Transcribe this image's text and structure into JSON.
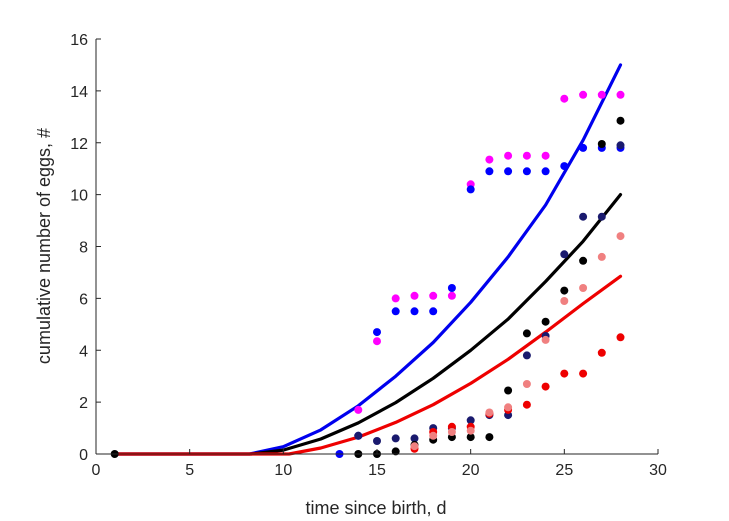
{
  "chart_data": {
    "type": "scatter",
    "title": "",
    "xlabel": "time since birth, d",
    "ylabel": "cumulative number of eggs, #",
    "xlim": [
      0,
      30
    ],
    "ylim": [
      0,
      16
    ],
    "xticks": [
      0,
      5,
      10,
      15,
      20,
      25,
      30
    ],
    "yticks": [
      0,
      2,
      4,
      6,
      8,
      10,
      12,
      14,
      16
    ],
    "grid": false,
    "legend": "none",
    "curves": [
      {
        "color": "#0000ee",
        "x": [
          1,
          8.2,
          10,
          12,
          14,
          16,
          18,
          20,
          22,
          24,
          26,
          28
        ],
        "y": [
          0,
          0,
          0.28,
          0.93,
          1.86,
          3.0,
          4.3,
          5.85,
          7.6,
          9.6,
          12.1,
          15.0
        ]
      },
      {
        "color": "#000000",
        "x": [
          1,
          8.3,
          10,
          12,
          14,
          16,
          18,
          20,
          22,
          24,
          26,
          28
        ],
        "y": [
          0,
          0,
          0.15,
          0.58,
          1.2,
          1.98,
          2.92,
          4.0,
          5.2,
          6.65,
          8.2,
          10.0
        ]
      },
      {
        "color": "#ee0000",
        "x": [
          1,
          10.3,
          12,
          14,
          16,
          18,
          20,
          22,
          24,
          26,
          28
        ],
        "y": [
          0,
          0,
          0.23,
          0.65,
          1.22,
          1.9,
          2.72,
          3.65,
          4.7,
          5.8,
          6.85
        ]
      }
    ],
    "series": [
      {
        "color": "#ff00ff",
        "x": [
          14,
          15,
          16,
          17,
          18,
          19,
          20,
          21,
          22,
          23,
          24,
          25,
          26,
          27,
          28
        ],
        "y": [
          1.7,
          4.35,
          6.0,
          6.1,
          6.1,
          6.1,
          10.4,
          11.35,
          11.5,
          11.5,
          11.5,
          13.7,
          13.85,
          13.85,
          13.85
        ]
      },
      {
        "color": "#0000ff",
        "x": [
          13,
          14,
          15,
          16,
          17,
          18,
          19,
          20,
          21,
          22,
          23,
          24,
          25,
          26,
          27,
          28
        ],
        "y": [
          0,
          0.7,
          4.7,
          5.5,
          5.5,
          5.5,
          6.4,
          10.2,
          10.9,
          10.9,
          10.9,
          10.9,
          11.1,
          11.8,
          11.8,
          11.8
        ]
      },
      {
        "color": "#1a1a6e",
        "x": [
          14,
          15,
          16,
          17,
          18,
          19,
          20,
          21,
          22,
          23,
          24,
          25,
          26,
          27,
          28
        ],
        "y": [
          0.7,
          0.5,
          0.6,
          0.6,
          1.0,
          1.0,
          1.3,
          1.5,
          1.5,
          3.8,
          4.55,
          7.7,
          9.15,
          9.15,
          11.9
        ]
      },
      {
        "color": "#000000",
        "x": [
          1,
          14,
          15,
          16,
          17,
          18,
          19,
          20,
          21,
          22,
          23,
          24,
          25,
          26,
          27,
          28
        ],
        "y": [
          0,
          0,
          0,
          0.1,
          0.35,
          0.55,
          0.65,
          0.65,
          0.65,
          2.45,
          4.65,
          5.1,
          6.3,
          7.45,
          11.95,
          12.85
        ]
      },
      {
        "color": "#ee0000",
        "x": [
          17,
          18,
          19,
          20,
          21,
          22,
          23,
          24,
          25,
          26,
          27,
          28
        ],
        "y": [
          0.2,
          0.85,
          1.05,
          1.05,
          1.55,
          1.7,
          1.9,
          2.6,
          3.1,
          3.1,
          3.9,
          4.5
        ]
      },
      {
        "color": "#f08080",
        "x": [
          17,
          18,
          19,
          20,
          21,
          22,
          23,
          24,
          25,
          26,
          27,
          28
        ],
        "y": [
          0.3,
          0.7,
          0.85,
          0.9,
          1.6,
          1.8,
          2.7,
          4.4,
          5.9,
          6.4,
          7.6,
          8.4
        ]
      }
    ]
  }
}
